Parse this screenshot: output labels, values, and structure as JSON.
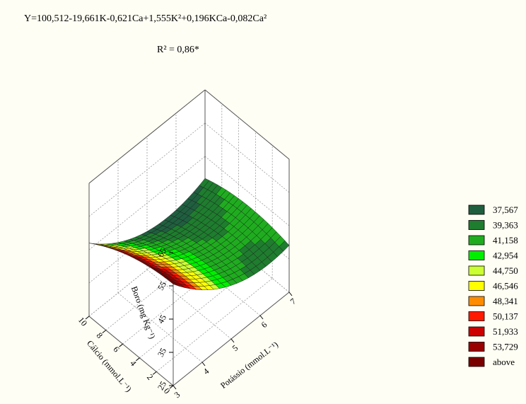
{
  "header": {
    "equation": "Y=100,512-19,661K-0,621Ca+1,555K²+0,196KCa-0,082Ca²",
    "r2": "R² = 0,86*"
  },
  "chart_data": {
    "type": "surface",
    "model": {
      "intercept": 100.512,
      "K": -19.661,
      "Ca": -0.621,
      "K2": 1.555,
      "KCa": 0.196,
      "Ca2": -0.082
    },
    "x_axis": {
      "label": "Potássio (mmol.L⁻¹)",
      "range": [
        3,
        7
      ],
      "ticks": [
        "3",
        "4",
        "5",
        "6",
        "7"
      ]
    },
    "y_axis": {
      "label": "Cálcio (mmol.L⁻¹)",
      "range": [
        0,
        10
      ],
      "ticks": [
        "0",
        "2",
        "4",
        "6",
        "8",
        "10"
      ]
    },
    "z_axis": {
      "label": "Boro (mg Kg⁻¹)",
      "range": [
        25,
        65
      ],
      "ticks": [
        "25",
        "35",
        "45",
        "55",
        "65"
      ]
    },
    "grid": true,
    "legend": {
      "placement": "right",
      "items": [
        {
          "label": "37,567",
          "color": "#1f5f3f"
        },
        {
          "label": "39,363",
          "color": "#1e7d2e"
        },
        {
          "label": "41,158",
          "color": "#1fad1f"
        },
        {
          "label": "42,954",
          "color": "#00ee00"
        },
        {
          "label": "44,750",
          "color": "#ccff33"
        },
        {
          "label": "46,546",
          "color": "#ffff00"
        },
        {
          "label": "48,341",
          "color": "#ff8c00"
        },
        {
          "label": "50,137",
          "color": "#ff1a00"
        },
        {
          "label": "51,933",
          "color": "#cc0000"
        },
        {
          "label": "53,729",
          "color": "#990000"
        },
        {
          "label": "above",
          "color": "#7a0000"
        }
      ]
    }
  }
}
